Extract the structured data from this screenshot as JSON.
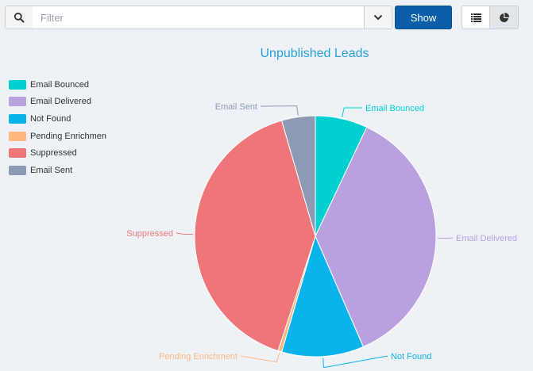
{
  "toolbar": {
    "search_icon": "search-icon",
    "filter_placeholder": "Filter",
    "dropdown_icon": "chevron-down-icon",
    "show_label": "Show",
    "list_view_icon": "list-icon",
    "chart_view_icon": "pie-chart-icon"
  },
  "colors": {
    "accent": "#0b5ea8",
    "title": "#2a9fd6"
  },
  "chart_data": {
    "type": "pie",
    "title": "Unpublished Leads",
    "legend_position": "top-left",
    "slices": [
      {
        "label": "Email Bounced",
        "legend_label": "Email Bounced",
        "value": 7,
        "color": "#00d0d0"
      },
      {
        "label": "Email Delivered",
        "legend_label": "Email Delivered",
        "value": 36.5,
        "color": "#b9a1e0"
      },
      {
        "label": "Not Found",
        "legend_label": "Not Found",
        "value": 11,
        "color": "#09b4ed"
      },
      {
        "label": "Pending Enrichment",
        "legend_label": "Pending Enrichmen",
        "value": 0.5,
        "color": "#ffb780"
      },
      {
        "label": "Suppressed",
        "legend_label": "Suppressed",
        "value": 40.5,
        "color": "#ee7678"
      },
      {
        "label": "Email Sent",
        "legend_label": "Email Sent",
        "value": 4.5,
        "color": "#8c9ab3"
      }
    ]
  }
}
